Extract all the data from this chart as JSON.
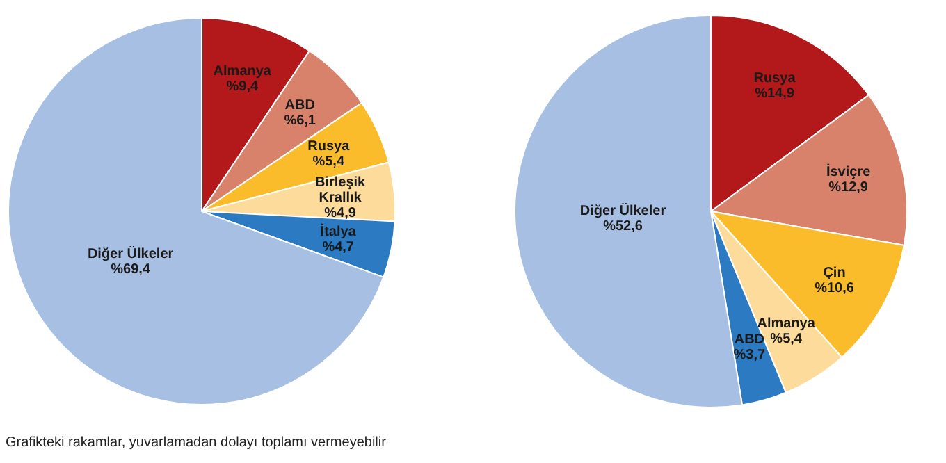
{
  "chart_data": [
    {
      "type": "pie",
      "categories": [
        "Almanya",
        "ABD",
        "Rusya",
        "Birleşik Krallık",
        "İtalya",
        "Diğer Ülkeler"
      ],
      "values": [
        9.4,
        6.1,
        5.4,
        4.9,
        4.7,
        69.4
      ],
      "colors": [
        "#b3191b",
        "#d9826b",
        "#fbbc2b",
        "#fddb9b",
        "#2b7ac2",
        "#a6bfe3"
      ],
      "value_labels": [
        "%9,4",
        "%6,1",
        "%5,4",
        "%4,9",
        "%4,7",
        "%69,4"
      ],
      "annotations": [
        "Grafikteki rakamlar, yuvarlamadan dolayı toplamı vermeyebilir"
      ]
    },
    {
      "type": "pie",
      "categories": [
        "Rusya",
        "İsviçre",
        "Çin",
        "Almanya",
        "ABD",
        "Diğer Ülkeler"
      ],
      "values": [
        14.9,
        12.9,
        10.6,
        5.4,
        3.7,
        52.6
      ],
      "colors": [
        "#b3191b",
        "#d9826b",
        "#fbbc2b",
        "#fddb9b",
        "#2b7ac2",
        "#a6bfe3"
      ],
      "value_labels": [
        "%14,9",
        "%12,9",
        "%10,6",
        "%5,4",
        "%3,7",
        "%52,6"
      ]
    }
  ]
}
